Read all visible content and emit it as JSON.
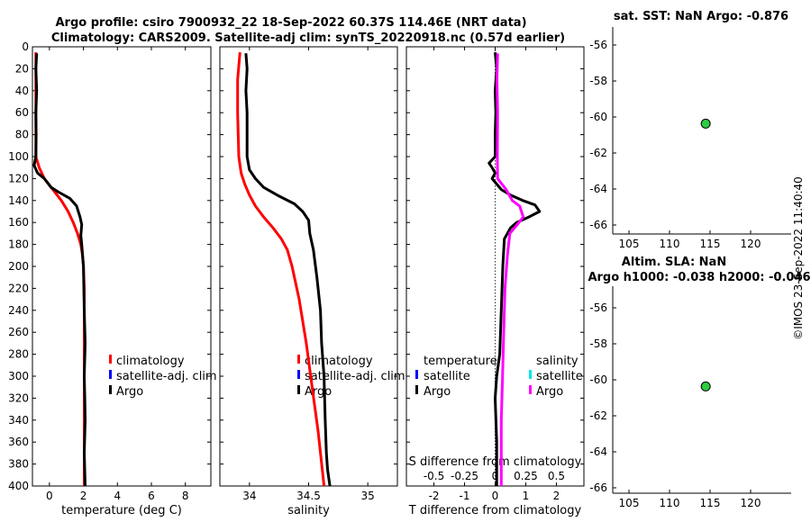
{
  "title_line1": "Argo profile: csiro 7900932_22 18-Sep-2022 60.37S 114.46E (NRT data)",
  "title_line2": "Climatology: CARS2009. Satellite-adj clim: synTS_20220918.nc (0.57d earlier)",
  "watermark": "©IMOS 23-Sep-2022 11:40:40",
  "colors": {
    "climatology": "#ff0000",
    "satellite": "#0000ff",
    "argo": "#000000",
    "satellite_s": "#00e5ee",
    "argo_s": "#ff00ff",
    "marker": "#2ecc40"
  },
  "chart_data": [
    {
      "type": "line",
      "id": "temperature",
      "xlabel": "temperature (deg C)",
      "ylabel": "",
      "xlim": [
        -1,
        9.5
      ],
      "ylim": [
        400,
        0
      ],
      "xticks": [
        0,
        2,
        4,
        6,
        8
      ],
      "xtick_labels": [
        "0",
        "2",
        "4",
        "6",
        "8"
      ],
      "yticks": [
        0,
        20,
        40,
        60,
        80,
        100,
        120,
        140,
        160,
        180,
        200,
        220,
        240,
        260,
        280,
        300,
        320,
        340,
        360,
        380,
        400
      ],
      "ytick_labels": [
        "0",
        "20",
        "40",
        "60",
        "80",
        "100",
        "120",
        "140",
        "160",
        "180",
        "200",
        "220",
        "240",
        "260",
        "280",
        "300",
        "320",
        "340",
        "360",
        "380",
        "400"
      ],
      "legend": [
        "climatology",
        "satellite-adj. clim",
        "Argo"
      ],
      "series": [
        {
          "name": "climatology",
          "color_key": "climatology",
          "points": [
            [
              -0.8,
              5
            ],
            [
              -0.8,
              100
            ],
            [
              -0.6,
              110
            ],
            [
              -0.3,
              120
            ],
            [
              0.2,
              130
            ],
            [
              0.7,
              140
            ],
            [
              1.1,
              150
            ],
            [
              1.4,
              160
            ],
            [
              1.65,
              170
            ],
            [
              1.85,
              180
            ],
            [
              1.95,
              190
            ],
            [
              2.0,
              200
            ],
            [
              2.05,
              220
            ],
            [
              2.05,
              260
            ],
            [
              2.05,
              300
            ],
            [
              2.05,
              400
            ]
          ]
        },
        {
          "name": "Argo",
          "color_key": "argo",
          "points": [
            [
              -0.75,
              6
            ],
            [
              -0.8,
              20
            ],
            [
              -0.75,
              40
            ],
            [
              -0.8,
              60
            ],
            [
              -0.78,
              80
            ],
            [
              -0.8,
              100
            ],
            [
              -0.9,
              108
            ],
            [
              -0.7,
              115
            ],
            [
              -0.3,
              120
            ],
            [
              0.1,
              128
            ],
            [
              0.5,
              132
            ],
            [
              1.2,
              138
            ],
            [
              1.6,
              145
            ],
            [
              1.8,
              155
            ],
            [
              1.9,
              162
            ],
            [
              1.85,
              172
            ],
            [
              1.9,
              180
            ],
            [
              2.0,
              200
            ],
            [
              2.05,
              240
            ],
            [
              2.1,
              270
            ],
            [
              2.05,
              300
            ],
            [
              2.08,
              320
            ],
            [
              2.1,
              340
            ],
            [
              2.05,
              370
            ],
            [
              2.1,
              400
            ]
          ]
        }
      ]
    },
    {
      "type": "line",
      "id": "salinity",
      "xlabel": "salinity",
      "ylabel": "",
      "xlim": [
        33.75,
        35.25
      ],
      "ylim": [
        400,
        0
      ],
      "xticks": [
        34,
        34.5,
        35
      ],
      "xtick_labels": [
        "34",
        "34.5",
        "35"
      ],
      "legend": [
        "climatology",
        "satellite-adj. clim",
        "Argo"
      ],
      "series": [
        {
          "name": "climatology",
          "color_key": "climatology",
          "points": [
            [
              33.92,
              5
            ],
            [
              33.9,
              30
            ],
            [
              33.9,
              60
            ],
            [
              33.91,
              100
            ],
            [
              33.93,
              115
            ],
            [
              33.96,
              125
            ],
            [
              34.0,
              135
            ],
            [
              34.05,
              145
            ],
            [
              34.12,
              155
            ],
            [
              34.2,
              165
            ],
            [
              34.27,
              175
            ],
            [
              34.32,
              185
            ],
            [
              34.36,
              200
            ],
            [
              34.42,
              230
            ],
            [
              34.48,
              270
            ],
            [
              34.53,
              310
            ],
            [
              34.58,
              350
            ],
            [
              34.62,
              390
            ],
            [
              34.63,
              400
            ]
          ]
        },
        {
          "name": "Argo",
          "color_key": "argo",
          "points": [
            [
              33.97,
              6
            ],
            [
              33.98,
              20
            ],
            [
              33.97,
              40
            ],
            [
              33.98,
              60
            ],
            [
              33.98,
              80
            ],
            [
              33.98,
              100
            ],
            [
              34.0,
              112
            ],
            [
              34.05,
              120
            ],
            [
              34.12,
              128
            ],
            [
              34.25,
              136
            ],
            [
              34.38,
              143
            ],
            [
              34.45,
              150
            ],
            [
              34.5,
              158
            ],
            [
              34.51,
              170
            ],
            [
              34.54,
              185
            ],
            [
              34.57,
              210
            ],
            [
              34.6,
              240
            ],
            [
              34.61,
              270
            ],
            [
              34.63,
              300
            ],
            [
              34.64,
              340
            ],
            [
              34.65,
              370
            ],
            [
              34.66,
              385
            ],
            [
              34.68,
              400
            ]
          ]
        }
      ]
    },
    {
      "type": "line",
      "id": "difference",
      "xlabel": "T difference from climatology",
      "x2label": "S difference from climatology",
      "xlim": [
        -2.9,
        2.9
      ],
      "ylim": [
        400,
        0
      ],
      "xticks": [
        -2,
        -1,
        0,
        1,
        2
      ],
      "xtick_labels": [
        "-2",
        "-1",
        "0",
        "1",
        "2"
      ],
      "x2lim": [
        -0.725,
        0.725
      ],
      "x2ticks": [
        -0.5,
        -0.25,
        0,
        0.25,
        0.5
      ],
      "x2tick_labels": [
        "-0.5",
        "-0.25",
        "0",
        "0.25",
        "0.5"
      ],
      "legend_t_title": "temperature",
      "legend_s_title": "salinity",
      "legend_t": [
        "satellite",
        "Argo"
      ],
      "legend_s": [
        "satellite",
        "Argo"
      ],
      "series": [
        {
          "name": "Argo T diff",
          "color_key": "argo",
          "points": [
            [
              0.0,
              5
            ],
            [
              0.05,
              20
            ],
            [
              0.0,
              40
            ],
            [
              0.02,
              60
            ],
            [
              0.0,
              80
            ],
            [
              0.0,
              100
            ],
            [
              -0.2,
              106
            ],
            [
              -0.1,
              110
            ],
            [
              0.0,
              115
            ],
            [
              -0.1,
              120
            ],
            [
              0.05,
              125
            ],
            [
              0.2,
              130
            ],
            [
              0.5,
              135
            ],
            [
              0.9,
              140
            ],
            [
              1.3,
              144
            ],
            [
              1.45,
              150
            ],
            [
              1.1,
              155
            ],
            [
              0.7,
              160
            ],
            [
              0.5,
              165
            ],
            [
              0.3,
              175
            ],
            [
              0.25,
              200
            ],
            [
              0.2,
              240
            ],
            [
              0.15,
              280
            ],
            [
              0.05,
              300
            ],
            [
              0.0,
              320
            ],
            [
              0.05,
              360
            ],
            [
              0.05,
              400
            ]
          ]
        },
        {
          "name": "Argo S diff",
          "color_key": "argo_s",
          "points": [
            [
              0.02,
              6
            ],
            [
              0.015,
              30
            ],
            [
              0.02,
              60
            ],
            [
              0.018,
              100
            ],
            [
              0.02,
              120
            ],
            [
              0.09,
              130
            ],
            [
              0.14,
              140
            ],
            [
              0.2,
              145
            ],
            [
              0.23,
              155
            ],
            [
              0.18,
              162
            ],
            [
              0.12,
              170
            ],
            [
              0.1,
              190
            ],
            [
              0.08,
              220
            ],
            [
              0.07,
              260
            ],
            [
              0.06,
              300
            ],
            [
              0.05,
              340
            ],
            [
              0.05,
              380
            ],
            [
              0.05,
              400
            ]
          ]
        }
      ]
    },
    {
      "type": "scatter",
      "id": "map_sst",
      "title": "sat. SST: NaN Argo: -0.876",
      "xlim": [
        103,
        125
      ],
      "ylim": [
        -66.5,
        -55
      ],
      "xticks": [
        105,
        110,
        115,
        120
      ],
      "xtick_labels": [
        "105",
        "110",
        "115",
        "120"
      ],
      "yticks": [
        -56,
        -58,
        -60,
        -62,
        -64,
        -66
      ],
      "ytick_labels": [
        "-56",
        "-58",
        "-60",
        "-62",
        "-64",
        "-66"
      ],
      "points": [
        [
          114.46,
          -60.37
        ]
      ]
    },
    {
      "type": "scatter",
      "id": "map_sla",
      "title": "Altim. SLA: NaN",
      "subtitle": "Argo h1000: -0.038 h2000: -0.046",
      "xlim": [
        103,
        125
      ],
      "ylim": [
        -66.3,
        -54.8
      ],
      "xticks": [
        105,
        110,
        115,
        120
      ],
      "xtick_labels": [
        "105",
        "110",
        "115",
        "120"
      ],
      "yticks": [
        -56,
        -58,
        -60,
        -62,
        -64,
        -66
      ],
      "ytick_labels": [
        "-56",
        "-58",
        "-60",
        "-62",
        "-64",
        "-66"
      ],
      "points": [
        [
          114.46,
          -60.37
        ]
      ]
    }
  ]
}
